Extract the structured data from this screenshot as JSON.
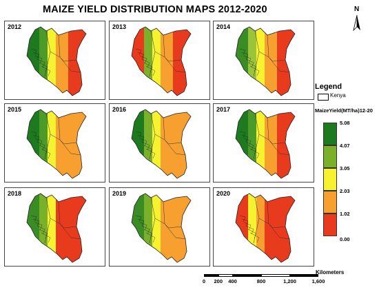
{
  "title": "MAIZE YIELD DISTRIBUTION  MAPS 2012-2020",
  "north_label": "N",
  "panels": [
    {
      "year": "2012",
      "zones": [
        "#1e7a1e",
        "#4c9b2a",
        "#f7f230",
        "#f7a030",
        "#e83a1c"
      ]
    },
    {
      "year": "2013",
      "zones": [
        "#e83a1c",
        "#7bb02a",
        "#f7f230",
        "#f7a030",
        "#e83a1c"
      ]
    },
    {
      "year": "2014",
      "zones": [
        "#3a8c24",
        "#9cc43a",
        "#f7f230",
        "#f7a030",
        "#e83a1c"
      ]
    },
    {
      "year": "2015",
      "zones": [
        "#1e7a1e",
        "#4c9b2a",
        "#f7f230",
        "#f7a030",
        "#f7a030"
      ]
    },
    {
      "year": "2016",
      "zones": [
        "#1e7a1e",
        "#7bb02a",
        "#f7f230",
        "#f7a030",
        "#f7a030"
      ]
    },
    {
      "year": "2017",
      "zones": [
        "#1e7a1e",
        "#4c9b2a",
        "#f7f230",
        "#f7a030",
        "#e83a1c"
      ]
    },
    {
      "year": "2018",
      "zones": [
        "#3a8c24",
        "#7bb02a",
        "#f7f230",
        "#e83a1c",
        "#e83a1c"
      ]
    },
    {
      "year": "2019",
      "zones": [
        "#3a8c24",
        "#7bb02a",
        "#f7f230",
        "#f7a030",
        "#f7a030"
      ]
    },
    {
      "year": "2020",
      "zones": [
        "#e83a1c",
        "#f7f230",
        "#f7a030",
        "#e83a1c",
        "#e83a1c"
      ]
    }
  ],
  "legend": {
    "title": "Legend",
    "kenya_label": "Kenya",
    "unit_label": "MaizeYield(MT/ha)12-20",
    "classes": [
      {
        "color": "#1e7a1e",
        "upper": "5.08"
      },
      {
        "color": "#7bb02a",
        "upper": "4.07"
      },
      {
        "color": "#f7f230",
        "upper": "3.05"
      },
      {
        "color": "#f7a030",
        "upper": "2.03"
      },
      {
        "color": "#e83a1c",
        "upper": "1.02"
      }
    ],
    "min_label": "0.00"
  },
  "scale_bar": {
    "unit": "Kilometers",
    "labels": [
      "0",
      "200",
      "400",
      "800",
      "1,200",
      "1,600"
    ],
    "values": [
      0,
      200,
      400,
      800,
      1200,
      1600
    ]
  }
}
